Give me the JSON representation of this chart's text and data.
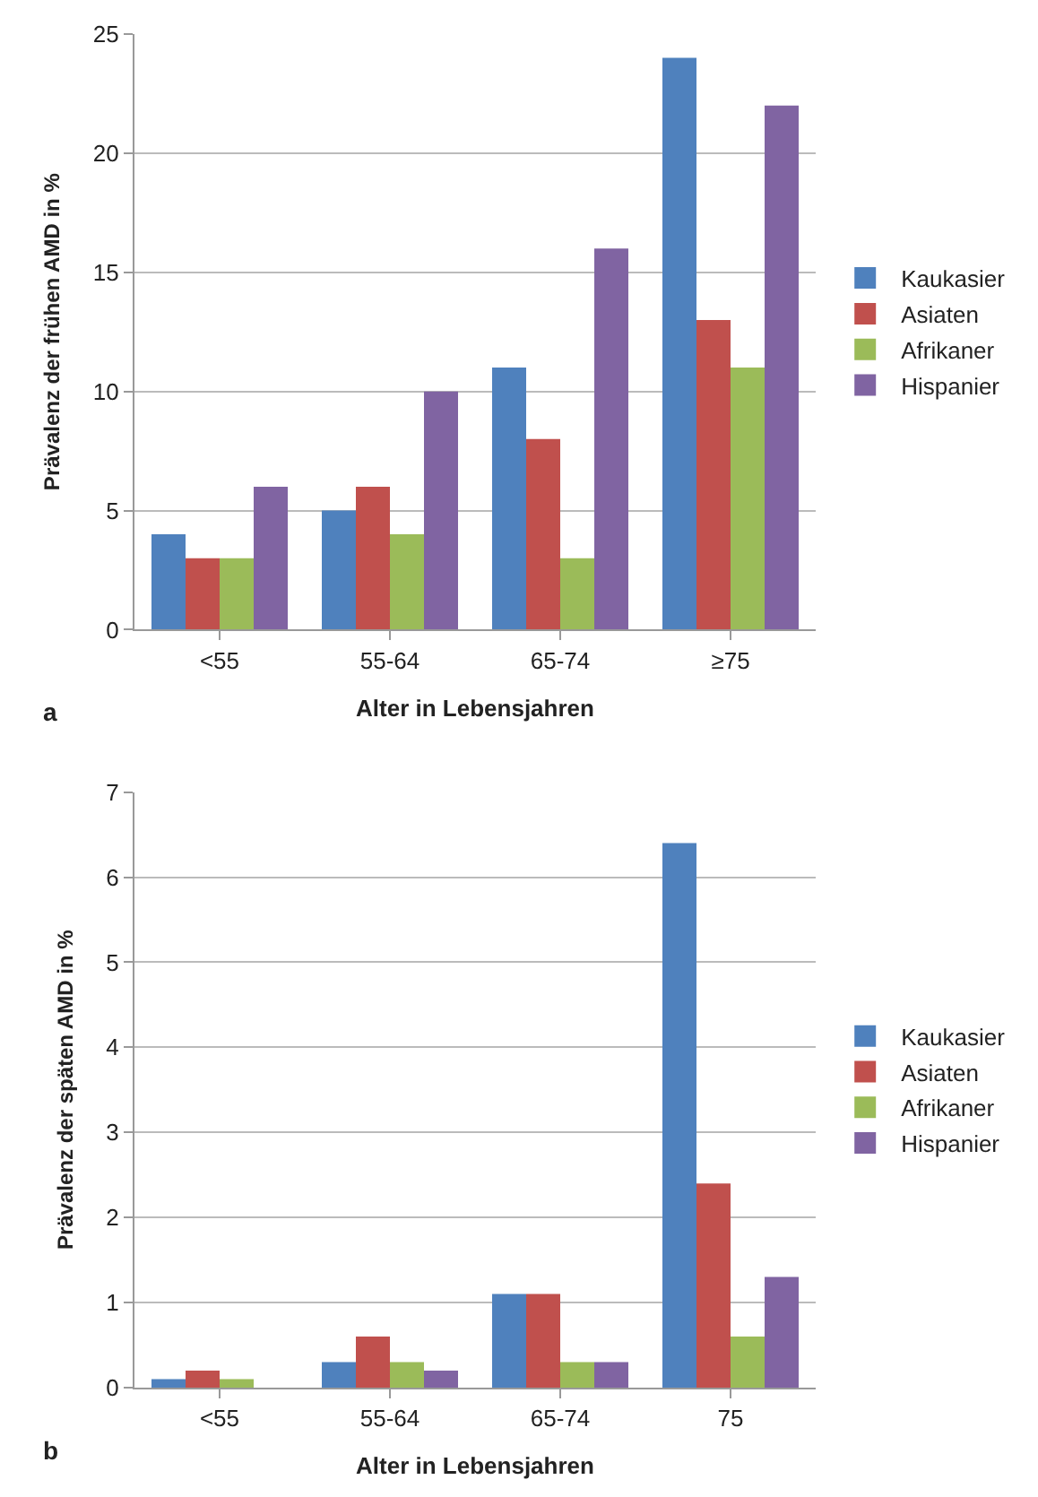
{
  "chart_data": [
    {
      "type": "bar",
      "xlabel": "Alter in Lebensjahren",
      "ylabel": "Prävalenz der frühen AMD in %",
      "annotations": [
        "a"
      ],
      "categories": [
        "<55",
        "55-64",
        "65-74",
        "≥75"
      ],
      "series": [
        {
          "name": "Kaukasier",
          "color": "#4f81bd",
          "values": [
            4,
            5,
            11,
            24
          ]
        },
        {
          "name": "Asiaten",
          "color": "#c0504d",
          "values": [
            3,
            6,
            8,
            13
          ]
        },
        {
          "name": "Afrikaner",
          "color": "#9bbb59",
          "values": [
            3,
            4,
            3,
            11
          ]
        },
        {
          "name": "Hispanier",
          "color": "#8064a2",
          "values": [
            6,
            10,
            16,
            22
          ]
        }
      ],
      "ylim": [
        0,
        25
      ],
      "yticks": [
        0,
        5,
        10,
        15,
        20,
        25
      ],
      "grid": "y",
      "legend": "right"
    },
    {
      "type": "bar",
      "xlabel": "Alter in Lebensjahren",
      "ylabel": "Prävalenz der späten AMD in %",
      "annotations": [
        "b"
      ],
      "categories": [
        "<55",
        "55-64",
        "65-74",
        "75"
      ],
      "series": [
        {
          "name": "Kaukasier",
          "color": "#4f81bd",
          "values": [
            0.1,
            0.3,
            1.1,
            6.4
          ]
        },
        {
          "name": "Asiaten",
          "color": "#c0504d",
          "values": [
            0.2,
            0.6,
            1.1,
            2.4
          ]
        },
        {
          "name": "Afrikaner",
          "color": "#9bbb59",
          "values": [
            0.1,
            0.3,
            0.3,
            0.6
          ]
        },
        {
          "name": "Hispanier",
          "color": "#8064a2",
          "values": [
            0.0,
            0.2,
            0.3,
            1.3
          ]
        }
      ],
      "ylim": [
        0,
        7
      ],
      "yticks": [
        0,
        1,
        2,
        3,
        4,
        5,
        6,
        7
      ],
      "grid": "y",
      "legend": "right"
    }
  ]
}
